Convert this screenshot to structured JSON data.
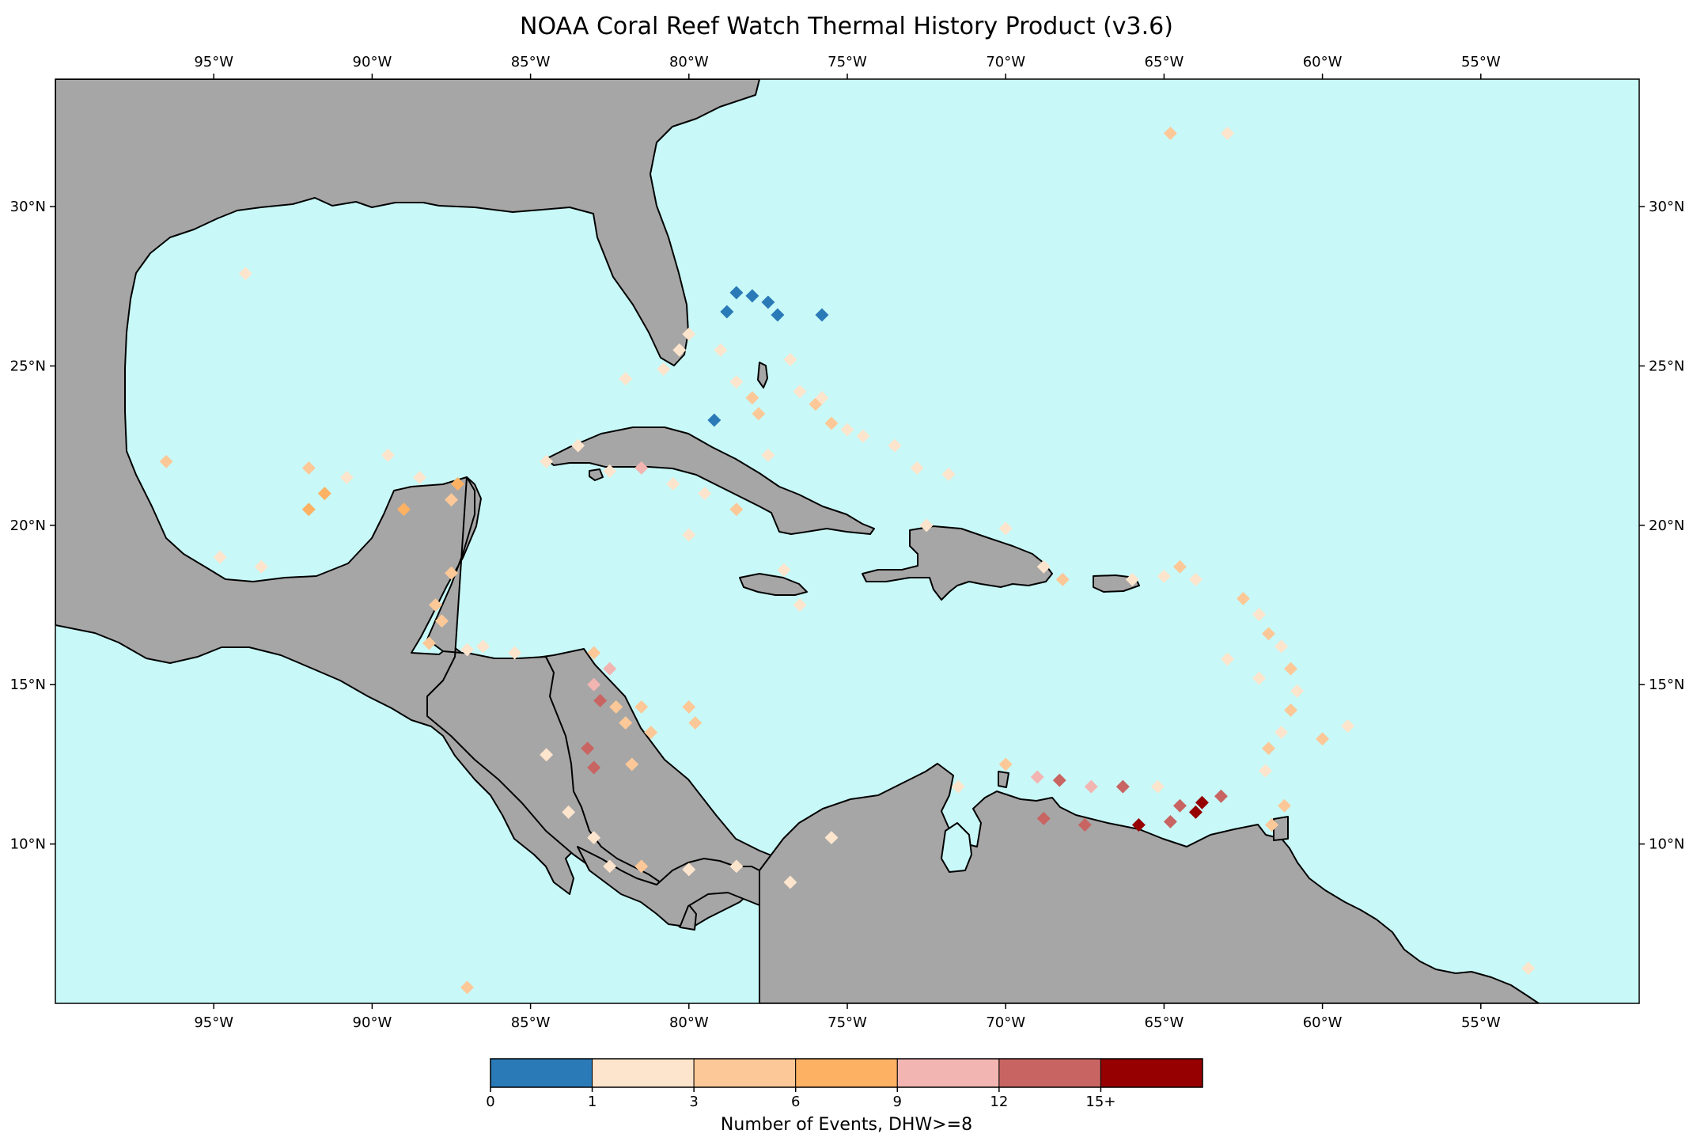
{
  "title": "NOAA Coral Reef Watch Thermal History Product (v3.6)",
  "map": {
    "lon_range": [
      -100,
      -50
    ],
    "lat_range": [
      5,
      34
    ],
    "lon_ticks": [
      {
        "value": -95,
        "label": "95°W"
      },
      {
        "value": -90,
        "label": "90°W"
      },
      {
        "value": -85,
        "label": "85°W"
      },
      {
        "value": -80,
        "label": "80°W"
      },
      {
        "value": -75,
        "label": "75°W"
      },
      {
        "value": -70,
        "label": "70°W"
      },
      {
        "value": -65,
        "label": "65°W"
      },
      {
        "value": -60,
        "label": "60°W"
      },
      {
        "value": -55,
        "label": "55°W"
      }
    ],
    "lat_ticks": [
      {
        "value": 10,
        "label": "10°N"
      },
      {
        "value": 15,
        "label": "15°N"
      },
      {
        "value": 20,
        "label": "20°N"
      },
      {
        "value": 25,
        "label": "25°N"
      },
      {
        "value": 30,
        "label": "30°N"
      }
    ],
    "ocean_color": "#c8f9f8",
    "land_color": "#a6a6a6",
    "coast_color": "#000000"
  },
  "colorbar": {
    "label": "Number of Events, DHW>=8",
    "bins": [
      {
        "color": "#2a7ab8"
      },
      {
        "color": "#fde4cc"
      },
      {
        "color": "#fdc898"
      },
      {
        "color": "#fdb163"
      },
      {
        "color": "#f2b5b1"
      },
      {
        "color": "#c86562"
      },
      {
        "color": "#960000"
      }
    ],
    "tick_labels": [
      "0",
      "1",
      "3",
      "6",
      "9",
      "12",
      "15+"
    ]
  }
}
